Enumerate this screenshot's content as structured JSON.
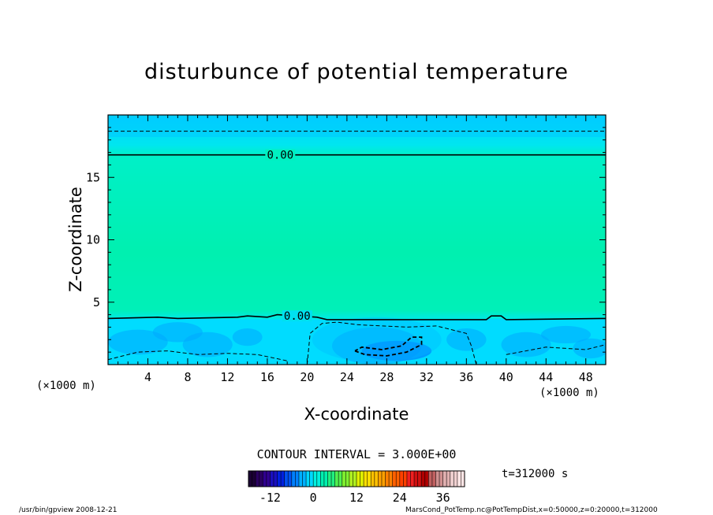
{
  "chart_data": {
    "type": "heatmap",
    "title": "disturbunce of potential temperature",
    "xlabel": "X-coordinate",
    "ylabel": "Z-coordinate",
    "x_unit": "(×1000 m)",
    "y_unit": "(×1000 m)",
    "xlim": [
      0,
      50
    ],
    "ylim": [
      0,
      20
    ],
    "x_ticks": [
      4,
      8,
      12,
      16,
      20,
      24,
      28,
      32,
      36,
      40,
      44,
      48
    ],
    "y_ticks": [
      5,
      10,
      15
    ],
    "contour_interval": "CONTOUR INTERVAL = 3.000E+00",
    "contour_labels": [
      {
        "text": "0.00",
        "x": 17.3,
        "z": 16.8
      },
      {
        "text": "0.00",
        "x": 19.0,
        "z": 3.9
      }
    ],
    "colorbar": {
      "min": -18,
      "max": 42,
      "ticks": [
        -12,
        0,
        12,
        24,
        36
      ],
      "colors": [
        "#1a0033",
        "#2a0060",
        "#300090",
        "#1a10c0",
        "#0020e0",
        "#0050f0",
        "#0080ff",
        "#00b0ff",
        "#00d8ff",
        "#00f0e0",
        "#00f0b0",
        "#20f080",
        "#50f050",
        "#80f030",
        "#b0f020",
        "#e0f000",
        "#ffe000",
        "#ffc000",
        "#ffa000",
        "#ff8000",
        "#ff6000",
        "#ff4000",
        "#f02020",
        "#d01010",
        "#b00000",
        "#c06060",
        "#d09090",
        "#e0b0b0",
        "#f0d0d0",
        "#ffe6e6"
      ]
    },
    "time_label": "t=312000 s"
  },
  "footer": {
    "left": "/usr/bin/gpview   2008-12-21",
    "right": "MarsCond_PotTemp.nc@PotTempDist,x=0:50000,z=0:20000,t=312000"
  }
}
